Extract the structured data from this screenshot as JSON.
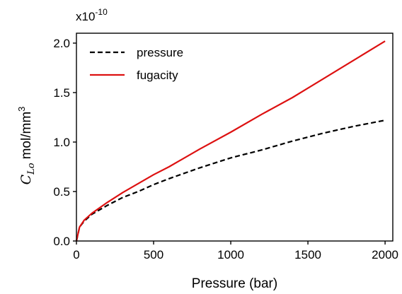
{
  "chart_data": {
    "type": "line",
    "xlabel": "Pressure (bar)",
    "ylabel": {
      "symbol": "C",
      "subscript": "Lo",
      "unit": "mol/mm",
      "superscript": "3"
    },
    "y_multiplier": {
      "base": "x10",
      "exponent": "-10"
    },
    "xlim": [
      0,
      2050
    ],
    "ylim": [
      0.0,
      2.1
    ],
    "x_ticks": [
      0,
      500,
      1000,
      1500,
      2000
    ],
    "y_ticks": [
      0.0,
      0.5,
      1.0,
      1.5,
      2.0
    ],
    "x_tick_labels": [
      "0",
      "500",
      "1000",
      "1500",
      "2000"
    ],
    "y_tick_labels": [
      "0.0",
      "0.5",
      "1.0",
      "1.5",
      "2.0"
    ],
    "grid": false,
    "legend_position": "top-left",
    "series": [
      {
        "name": "pressure",
        "color": "#000000",
        "line_style": "dashed",
        "x": [
          0,
          20,
          50,
          100,
          200,
          300,
          400,
          500,
          600,
          800,
          1000,
          1200,
          1400,
          1600,
          1800,
          2000
        ],
        "y": [
          0.0,
          0.14,
          0.2,
          0.27,
          0.36,
          0.44,
          0.5,
          0.57,
          0.63,
          0.74,
          0.84,
          0.92,
          1.01,
          1.09,
          1.16,
          1.22
        ]
      },
      {
        "name": "fugacity",
        "color": "#dd1111",
        "line_style": "solid",
        "x": [
          0,
          20,
          50,
          100,
          200,
          300,
          400,
          500,
          600,
          800,
          1000,
          1200,
          1400,
          1600,
          1800,
          2000
        ],
        "y": [
          0.0,
          0.14,
          0.21,
          0.28,
          0.39,
          0.49,
          0.58,
          0.67,
          0.75,
          0.93,
          1.1,
          1.28,
          1.45,
          1.64,
          1.83,
          2.02
        ]
      }
    ]
  }
}
